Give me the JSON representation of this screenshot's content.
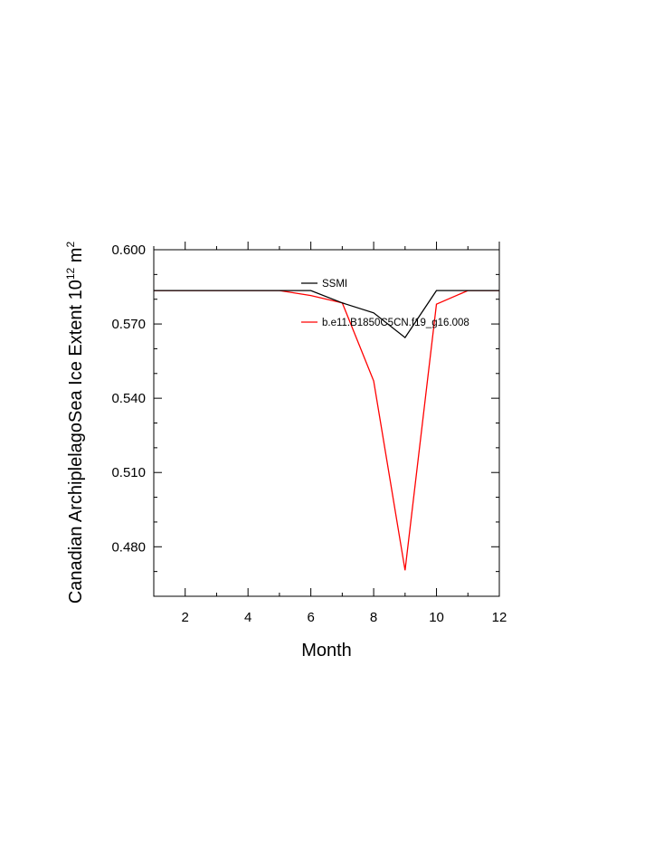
{
  "chart_data": {
    "type": "line",
    "xlabel": "Month",
    "ylabel": "Canadian ArchiplelagoSea Ice Extent 10",
    "ylabel_sup": "12",
    "ylabel_unit": " m",
    "ylabel_unit_sup": "2",
    "xlim": [
      1,
      12
    ],
    "ylim": [
      0.46,
      0.6
    ],
    "x_ticks": [
      2,
      4,
      6,
      8,
      10,
      12
    ],
    "y_ticks": [
      0.48,
      0.51,
      0.54,
      0.57,
      0.6
    ],
    "y_tick_labels": [
      "0.480",
      "0.510",
      "0.540",
      "0.570",
      "0.600"
    ],
    "x": [
      1,
      2,
      3,
      4,
      5,
      6,
      7,
      8,
      9,
      10,
      11,
      12
    ],
    "series": [
      {
        "name": "SSMI",
        "color": "#000000",
        "values": [
          0.5835,
          0.5835,
          0.5835,
          0.5835,
          0.5835,
          0.5835,
          0.5785,
          0.5745,
          0.5645,
          0.5835,
          0.5835,
          0.5835
        ]
      },
      {
        "name": "b.e11.B1850C5CN.f19_g16.008",
        "color": "#ff0000",
        "values": [
          0.5835,
          0.5835,
          0.5835,
          0.5835,
          0.5835,
          0.5815,
          0.5785,
          0.547,
          0.4705,
          0.578,
          0.5835,
          0.5835
        ]
      }
    ],
    "legend_position": "top-right",
    "grid": false
  }
}
